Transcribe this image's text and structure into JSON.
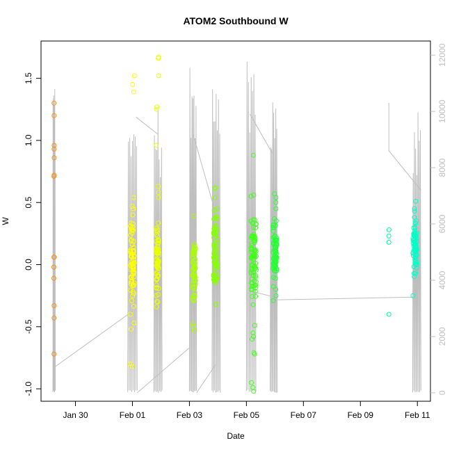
{
  "chart_data": {
    "type": "scatter",
    "title": "ATOM2 Southbound W",
    "xlabel": "Date",
    "ylabel": "W",
    "xlim": [
      "2018-01-28T19:00",
      "2018-02-11T11:00"
    ],
    "ylim": [
      -1.1,
      1.8
    ],
    "y2lim": [
      -300,
      12500
    ],
    "x_ticks": [
      {
        "value": "2018-01-30",
        "label": "Jan 30"
      },
      {
        "value": "2018-02-01",
        "label": "Feb 01"
      },
      {
        "value": "2018-02-03",
        "label": "Feb 03"
      },
      {
        "value": "2018-02-05",
        "label": "Feb 05"
      },
      {
        "value": "2018-02-07",
        "label": "Feb 07"
      },
      {
        "value": "2018-02-09",
        "label": "Feb 09"
      },
      {
        "value": "2018-02-11",
        "label": "Feb 11"
      }
    ],
    "y_ticks": [
      -1.0,
      -0.5,
      0.0,
      0.5,
      1.0,
      1.5
    ],
    "y_tick_labels": [
      "-1.0",
      "-0.5",
      "0.0",
      "0.5",
      "1.0",
      "1.5"
    ],
    "y2_ticks": [
      0,
      2000,
      4000,
      6000,
      8000,
      10000,
      12000
    ],
    "y2_tick_labels": [
      "0",
      "2000",
      "4000",
      "6000",
      "8000",
      "10000",
      "12000"
    ],
    "grid": false,
    "point_series": [
      {
        "x": "2018-01-29T06:00",
        "color": "#ff8c1a",
        "spread_hours": 0.4,
        "count": 0,
        "values": [
          1.3,
          1.2,
          0.96,
          0.93,
          0.86,
          0.72,
          0.71,
          0.06,
          0.06,
          -0.02,
          -0.11,
          -0.33,
          -0.43,
          -0.72
        ]
      },
      {
        "x": "2018-02-01T00:00",
        "color": "#ffff00",
        "spread_hours": 3.5,
        "count": 70,
        "center": 0.02,
        "spread": 0.28,
        "values": [
          1.52,
          1.45,
          1.39,
          0.54,
          0.47,
          0.45,
          0.4,
          -0.4,
          -0.47,
          -0.52,
          -0.8,
          -0.82
        ]
      },
      {
        "x": "2018-02-01T21:00",
        "color": "#eaff00",
        "spread_hours": 2.5,
        "count": 70,
        "center": 0.05,
        "spread": 0.25,
        "values": [
          1.67,
          1.66,
          1.52,
          1.27,
          1.25,
          0.96,
          0.63,
          0.58,
          0.54,
          -0.3,
          -0.34
        ]
      },
      {
        "x": "2018-02-03T04:00",
        "color": "#a8ff00",
        "spread_hours": 2.5,
        "count": 55,
        "center": -0.05,
        "spread": 0.25,
        "values": [
          0.39,
          -0.48,
          -0.53,
          -0.5
        ]
      },
      {
        "x": "2018-02-03T22:00",
        "color": "#86ff00",
        "spread_hours": 3.5,
        "count": 70,
        "center": 0.1,
        "spread": 0.25,
        "values": [
          0.62,
          0.61,
          0.54,
          0.45,
          0.44,
          -0.32,
          -0.32
        ]
      },
      {
        "x": "2018-02-05T06:00",
        "color": "#40ff1a",
        "spread_hours": 4.5,
        "count": 80,
        "center": 0.05,
        "spread": 0.3,
        "values": [
          0.88,
          0.56,
          0.55,
          -0.49,
          -0.55,
          -0.58,
          -0.6,
          -0.72,
          -0.71,
          -0.99,
          -1.02,
          -0.95
        ]
      },
      {
        "x": "2018-02-06T00:00",
        "color": "#26ff33",
        "spread_hours": 3.0,
        "count": 70,
        "center": 0.1,
        "spread": 0.22,
        "values": [
          0.57,
          0.54,
          0.5,
          0.45,
          -0.2,
          -0.25,
          -0.29
        ]
      },
      {
        "x": "2018-02-10T00:00",
        "color": "#00ff99",
        "spread_hours": 0.2,
        "count": 0,
        "values": [
          0.28,
          0.23,
          0.18,
          -0.4
        ]
      },
      {
        "x": "2018-02-10T22:00",
        "color": "#00ffc8",
        "spread_hours": 3.5,
        "count": 70,
        "center": 0.12,
        "spread": 0.2,
        "values": [
          0.51,
          0.45,
          0.43,
          0.38,
          -0.07,
          -0.25
        ]
      }
    ],
    "secondary_line": {
      "color": "#bebebe",
      "axis": "right",
      "segments": [
        {
          "x0": "2018-01-29T05:00",
          "x1": "2018-01-29T07:00",
          "kind": "spike",
          "base": 0,
          "top": 11400
        },
        {
          "x0": "2018-01-31T20:00",
          "x1": "2018-02-01T04:00",
          "kind": "spike",
          "base": 0,
          "top": 10600
        },
        {
          "x0": "2018-02-01T18:00",
          "x1": "2018-02-02T01:00",
          "kind": "spike",
          "base": 0,
          "top": 10200
        },
        {
          "x0": "2018-02-03T00:00",
          "x1": "2018-02-03T06:00",
          "kind": "spike",
          "base": 0,
          "top": 12000
        },
        {
          "x0": "2018-02-03T19:00",
          "x1": "2018-02-04T02:00",
          "kind": "spike",
          "base": 0,
          "top": 10800
        },
        {
          "x0": "2018-02-05T00:00",
          "x1": "2018-02-05T08:00",
          "kind": "spike",
          "base": 0,
          "top": 12300
        },
        {
          "x0": "2018-02-05T20:00",
          "x1": "2018-02-06T02:00",
          "kind": "spike",
          "base": 0,
          "top": 10400
        },
        {
          "x0": "2018-02-10T20:00",
          "x1": "2018-02-11T03:00",
          "kind": "spike",
          "base": 0,
          "top": 10000
        }
      ],
      "connectors": [
        [
          [
            "2018-01-29T06:00",
            900
          ],
          [
            "2018-02-01T00:00",
            2900
          ]
        ],
        [
          [
            "2018-02-01T03:00",
            9800
          ],
          [
            "2018-02-01T21:00",
            9200
          ]
        ],
        [
          [
            "2018-02-01T04:00",
            0
          ],
          [
            "2018-02-03T00:00",
            1600
          ]
        ],
        [
          [
            "2018-02-03T03:00",
            9200
          ],
          [
            "2018-02-04T00:00",
            6100
          ]
        ],
        [
          [
            "2018-02-03T06:00",
            0
          ],
          [
            "2018-02-03T22:00",
            1000
          ]
        ],
        [
          [
            "2018-02-05T03:00",
            9900
          ],
          [
            "2018-02-05T22:00",
            8500
          ]
        ],
        [
          [
            "2018-02-05T05:00",
            3600
          ],
          [
            "2018-02-06T00:00",
            3400
          ]
        ],
        [
          [
            "2018-02-06T00:00",
            3300
          ],
          [
            "2018-02-10T21:00",
            3400
          ]
        ],
        [
          [
            "2018-02-10T00:00",
            10300
          ],
          [
            "2018-02-10T00:00",
            8600
          ],
          [
            "2018-02-11T03:00",
            7200
          ]
        ]
      ]
    }
  }
}
